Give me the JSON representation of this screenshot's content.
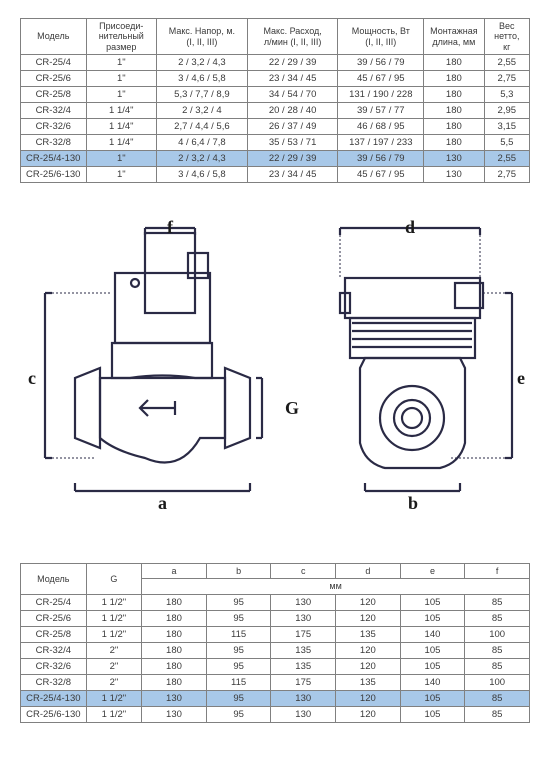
{
  "table1": {
    "headers": [
      "Модель",
      "Присоеди-\nнительный\nразмер",
      "Макс. Напор, м.\n(I, II, III)",
      "Макс. Расход,\nл/мин (I, II, III)",
      "Мощность, Вт\n(I, II, III)",
      "Монтажная\nдлина, мм",
      "Вес\nнетто,\nкг"
    ],
    "rows": [
      {
        "cells": [
          "CR-25/4",
          "1\"",
          "2 / 3,2 / 4,3",
          "22 / 29 / 39",
          "39 / 56 / 79",
          "180",
          "2,55"
        ],
        "hl": false
      },
      {
        "cells": [
          "CR-25/6",
          "1\"",
          "3 / 4,6 / 5,8",
          "23 / 34 / 45",
          "45 / 67 / 95",
          "180",
          "2,75"
        ],
        "hl": false
      },
      {
        "cells": [
          "CR-25/8",
          "1\"",
          "5,3 / 7,7 / 8,9",
          "34 / 54 / 70",
          "131 / 190 / 228",
          "180",
          "5,3"
        ],
        "hl": false
      },
      {
        "cells": [
          "CR-32/4",
          "1 1/4\"",
          "2 / 3,2 / 4",
          "20 / 28 / 40",
          "39 / 57 / 77",
          "180",
          "2,95"
        ],
        "hl": false
      },
      {
        "cells": [
          "CR-32/6",
          "1 1/4\"",
          "2,7 / 4,4 / 5,6",
          "26 / 37 / 49",
          "46 / 68 / 95",
          "180",
          "3,15"
        ],
        "hl": false
      },
      {
        "cells": [
          "CR-32/8",
          "1 1/4\"",
          "4 / 6,4 / 7,8",
          "35 / 53 / 71",
          "137 / 197 / 233",
          "180",
          "5,5"
        ],
        "hl": false
      },
      {
        "cells": [
          "CR-25/4-130",
          "1\"",
          "2 / 3,2 / 4,3",
          "22 / 29 / 39",
          "39 / 56 / 79",
          "130",
          "2,55"
        ],
        "hl": true
      },
      {
        "cells": [
          "CR-25/6-130",
          "1\"",
          "3 / 4,6 / 5,8",
          "23 / 34 / 45",
          "45 / 67 / 95",
          "130",
          "2,75"
        ],
        "hl": false
      }
    ]
  },
  "table2": {
    "headers_top": [
      "Модель",
      "G",
      "a",
      "b",
      "c",
      "d",
      "e",
      "f"
    ],
    "unit_row_label": "мм",
    "rows": [
      {
        "cells": [
          "CR-25/4",
          "1 1/2\"",
          "180",
          "95",
          "130",
          "120",
          "105",
          "85"
        ],
        "hl": false
      },
      {
        "cells": [
          "CR-25/6",
          "1 1/2\"",
          "180",
          "95",
          "130",
          "120",
          "105",
          "85"
        ],
        "hl": false
      },
      {
        "cells": [
          "CR-25/8",
          "1 1/2\"",
          "180",
          "115",
          "175",
          "135",
          "140",
          "100"
        ],
        "hl": false
      },
      {
        "cells": [
          "CR-32/4",
          "2\"",
          "180",
          "95",
          "135",
          "120",
          "105",
          "85"
        ],
        "hl": false
      },
      {
        "cells": [
          "CR-32/6",
          "2\"",
          "180",
          "95",
          "135",
          "120",
          "105",
          "85"
        ],
        "hl": false
      },
      {
        "cells": [
          "CR-32/8",
          "2\"",
          "180",
          "115",
          "175",
          "135",
          "140",
          "100"
        ],
        "hl": false
      },
      {
        "cells": [
          "CR-25/4-130",
          "1 1/2\"",
          "130",
          "95",
          "130",
          "120",
          "105",
          "85"
        ],
        "hl": true
      },
      {
        "cells": [
          "CR-25/6-130",
          "1 1/2\"",
          "130",
          "95",
          "130",
          "120",
          "105",
          "85"
        ],
        "hl": false
      }
    ]
  },
  "diagram": {
    "labels": {
      "a": "a",
      "b": "b",
      "c": "c",
      "d": "d",
      "e": "e",
      "f": "f",
      "G": "G"
    },
    "stroke": "#2a2a45",
    "stroke_width": 2.2,
    "fill": "#ffffff"
  }
}
